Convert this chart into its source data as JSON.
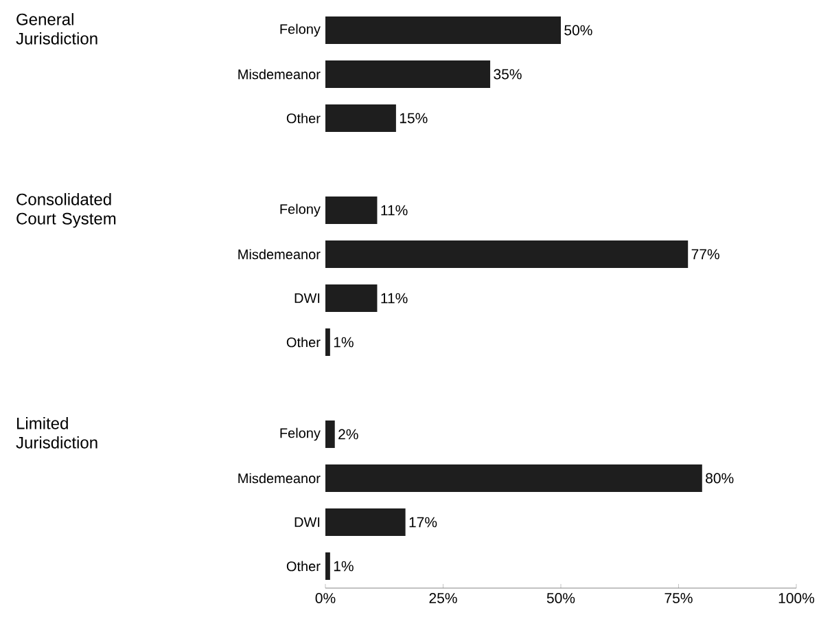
{
  "chart_data": [
    {
      "type": "bar",
      "orientation": "horizontal",
      "ylabel": "General Jurisdiction",
      "categories": [
        "Felony",
        "Misdemeanor",
        "Other"
      ],
      "values": [
        50,
        35,
        15
      ],
      "value_labels": [
        "50%",
        "35%",
        "15%"
      ],
      "color": "#1e1e1e",
      "xlim": [
        0,
        100
      ],
      "tick_labels": "y"
    },
    {
      "type": "bar",
      "orientation": "horizontal",
      "ylabel": "Consolidated Court System",
      "categories": [
        "Felony",
        "Misdemeanor",
        "DWI",
        "Other"
      ],
      "values": [
        11,
        77,
        11,
        1
      ],
      "value_labels": [
        "11%",
        "77%",
        "11%",
        "1%"
      ],
      "color": "#1e1e1e",
      "xlim": [
        0,
        100
      ],
      "tick_labels": "y"
    },
    {
      "type": "bar",
      "orientation": "horizontal",
      "ylabel": "Limited Jurisdiction",
      "categories": [
        "Felony",
        "Misdemeanor",
        "DWI",
        "Other"
      ],
      "values": [
        2,
        80,
        17,
        1
      ],
      "value_labels": [
        "2%",
        "80%",
        "17%",
        "1%"
      ],
      "color": "#1e1e1e",
      "xlim": [
        0,
        100
      ],
      "xticks": [
        {
          "value": 0,
          "label": "0%"
        },
        {
          "value": 25,
          "label": "25%"
        },
        {
          "value": 50,
          "label": "50%"
        },
        {
          "value": 75,
          "label": "75%"
        },
        {
          "value": 100,
          "label": "100%"
        }
      ]
    }
  ]
}
